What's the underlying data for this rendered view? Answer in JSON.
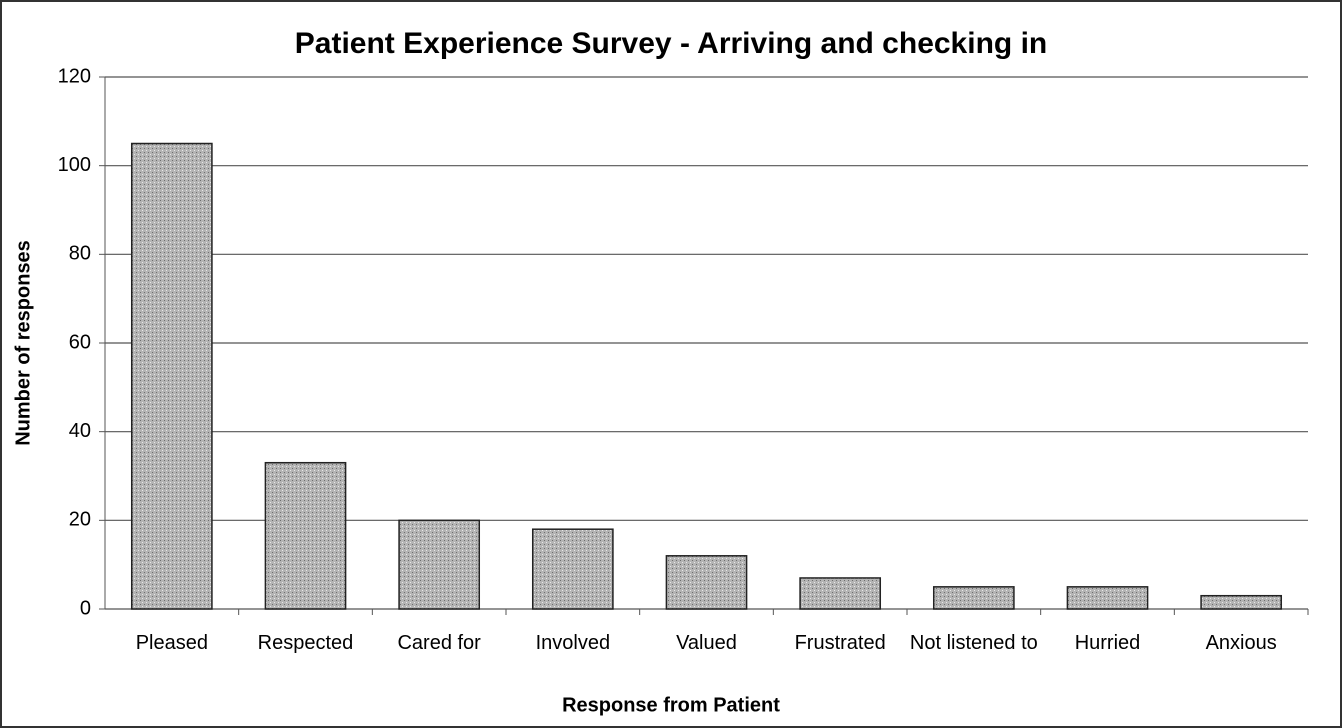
{
  "chart_data": {
    "type": "bar",
    "title": "Patient Experience Survey - Arriving and checking in",
    "x_label": "Response from Patient",
    "y_label": "Number of responses",
    "categories": [
      "Pleased",
      "Respected",
      "Cared for",
      "Involved",
      "Valued",
      "Frustrated",
      "Not listened to",
      "Hurried",
      "Anxious"
    ],
    "values": [
      105,
      33,
      20,
      18,
      12,
      7,
      5,
      5,
      3
    ],
    "color": "#a8a8a8",
    "ylim": [
      0,
      120
    ],
    "yticks": [
      0,
      20,
      40,
      60,
      80,
      100,
      120
    ],
    "grid": true
  }
}
